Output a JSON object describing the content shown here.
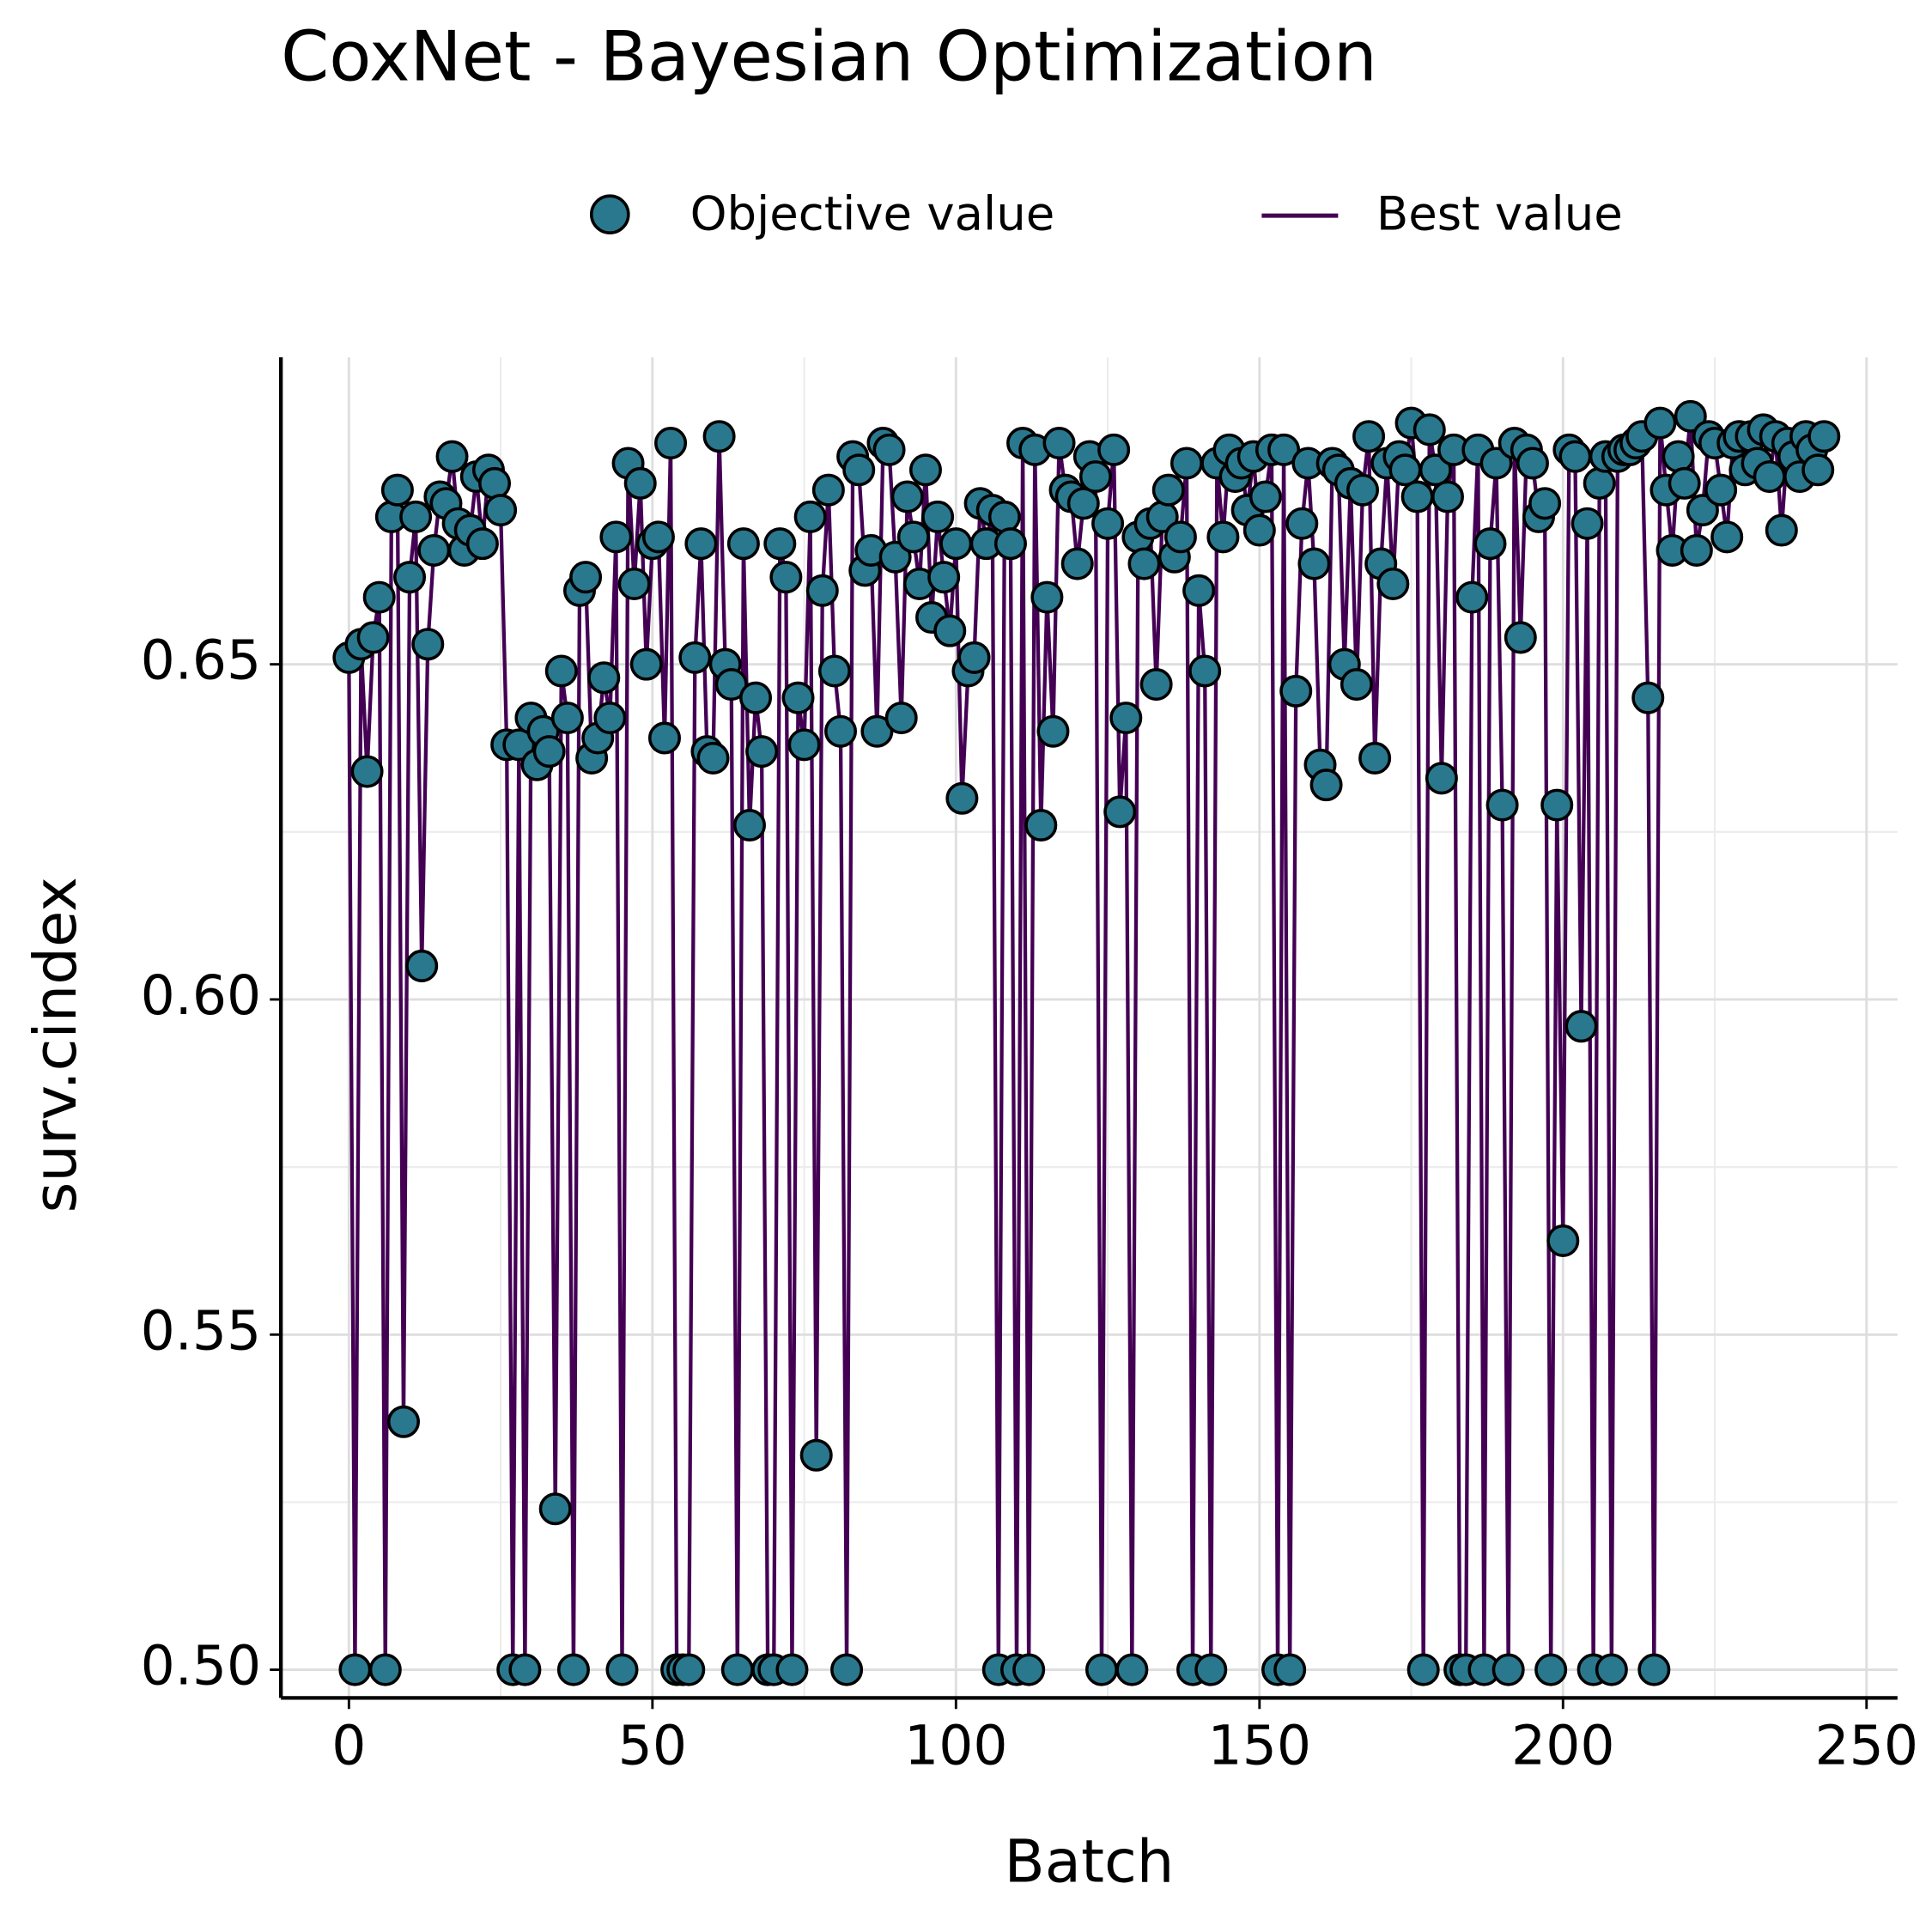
{
  "chart_data": {
    "type": "scatter-line",
    "title": "CoxNet - Bayesian Optimization",
    "x_label": "Batch",
    "y_label": "surv.cindex",
    "x": [
      0,
      1,
      2,
      3,
      4,
      5,
      6,
      7,
      8,
      9,
      10,
      11,
      12,
      13,
      14,
      15,
      16,
      17,
      18,
      19,
      20,
      21,
      22,
      23,
      24,
      25,
      26,
      27,
      28,
      29,
      30,
      31,
      32,
      33,
      34,
      35,
      36,
      37,
      38,
      39,
      40,
      41,
      42,
      43,
      44,
      45,
      46,
      47,
      48,
      49,
      50,
      51,
      52,
      53,
      54,
      55,
      56,
      57,
      58,
      59,
      60,
      61,
      62,
      63,
      64,
      65,
      66,
      67,
      68,
      69,
      70,
      71,
      72,
      73,
      74,
      75,
      76,
      77,
      78,
      79,
      80,
      81,
      82,
      83,
      84,
      85,
      86,
      87,
      88,
      89,
      90,
      91,
      92,
      93,
      94,
      95,
      96,
      97,
      98,
      99,
      100,
      101,
      102,
      103,
      104,
      105,
      106,
      107,
      108,
      109,
      110,
      111,
      112,
      113,
      114,
      115,
      116,
      117,
      118,
      119,
      120,
      121,
      122,
      123,
      124,
      125,
      126,
      127,
      128,
      129,
      130,
      131,
      132,
      133,
      134,
      135,
      136,
      137,
      138,
      139,
      140,
      141,
      142,
      143,
      144,
      145,
      146,
      147,
      148,
      149,
      150,
      151,
      152,
      153,
      154,
      155,
      156,
      157,
      158,
      159,
      160,
      161,
      162,
      163,
      164,
      165,
      166,
      167,
      168,
      169,
      170,
      171,
      172,
      173,
      174,
      175,
      176,
      177,
      178,
      179,
      180,
      181,
      182,
      183,
      184,
      185,
      186,
      187,
      188,
      189,
      190,
      191,
      192,
      193,
      194,
      195,
      196,
      197,
      198,
      199,
      200,
      201,
      202,
      203,
      204,
      205,
      206,
      207,
      208,
      209,
      210,
      211,
      212,
      213,
      214,
      215,
      216,
      217,
      218,
      219,
      220,
      221,
      222,
      223,
      224,
      225,
      226,
      227,
      228,
      229,
      230,
      231,
      232,
      233,
      234,
      235,
      236,
      237,
      238,
      239,
      240,
      241,
      242,
      243
    ],
    "series": [
      {
        "name": "Objective value",
        "color": "#2a788e",
        "values": [
          0.651,
          0.5,
          0.653,
          0.634,
          0.654,
          0.66,
          0.5,
          0.672,
          0.676,
          0.537,
          0.663,
          0.672,
          0.605,
          0.653,
          0.667,
          0.675,
          0.674,
          0.681,
          0.671,
          0.667,
          0.67,
          0.678,
          0.668,
          0.679,
          0.677,
          0.673,
          0.638,
          0.5,
          0.638,
          0.5,
          0.642,
          0.635,
          0.64,
          0.637,
          0.524,
          0.649,
          0.642,
          0.5,
          0.661,
          0.663,
          0.636,
          0.639,
          0.648,
          0.642,
          0.669,
          0.5,
          0.68,
          0.662,
          0.677,
          0.65,
          0.668,
          0.669,
          0.639,
          0.683,
          0.5,
          0.5,
          0.5,
          0.651,
          0.668,
          0.637,
          0.636,
          0.684,
          0.65,
          0.647,
          0.5,
          0.668,
          0.626,
          0.645,
          0.637,
          0.5,
          0.5,
          0.668,
          0.663,
          0.5,
          0.645,
          0.638,
          0.672,
          0.532,
          0.661,
          0.676,
          0.649,
          0.64,
          0.5,
          0.681,
          0.679,
          0.664,
          0.667,
          0.64,
          0.683,
          0.682,
          0.666,
          0.642,
          0.675,
          0.669,
          0.662,
          0.679,
          0.657,
          0.672,
          0.663,
          0.655,
          0.668,
          0.63,
          0.649,
          0.651,
          0.674,
          0.668,
          0.673,
          0.5,
          0.672,
          0.668,
          0.5,
          0.683,
          0.5,
          0.682,
          0.626,
          0.66,
          0.64,
          0.683,
          0.676,
          0.675,
          0.665,
          0.674,
          0.681,
          0.678,
          0.5,
          0.671,
          0.682,
          0.628,
          0.642,
          0.5,
          0.669,
          0.665,
          0.671,
          0.647,
          0.672,
          0.676,
          0.666,
          0.669,
          0.68,
          0.5,
          0.661,
          0.649,
          0.5,
          0.68,
          0.669,
          0.682,
          0.678,
          0.68,
          0.673,
          0.681,
          0.67,
          0.675,
          0.682,
          0.5,
          0.682,
          0.5,
          0.646,
          0.671,
          0.68,
          0.665,
          0.635,
          0.632,
          0.68,
          0.679,
          0.65,
          0.677,
          0.647,
          0.676,
          0.684,
          0.636,
          0.665,
          0.68,
          0.662,
          0.681,
          0.679,
          0.686,
          0.675,
          0.5,
          0.685,
          0.679,
          0.633,
          0.675,
          0.682,
          0.5,
          0.5,
          0.66,
          0.682,
          0.5,
          0.668,
          0.68,
          0.629,
          0.5,
          0.683,
          0.654,
          0.682,
          0.68,
          0.672,
          0.674,
          0.5,
          0.629,
          0.564,
          0.682,
          0.681,
          0.596,
          0.671,
          0.5,
          0.677,
          0.681,
          0.5,
          0.681,
          0.682,
          0.682,
          0.683,
          0.684,
          0.645,
          0.5,
          0.686,
          0.676,
          0.667,
          0.681,
          0.677,
          0.687,
          0.667,
          0.673,
          0.684,
          0.683,
          0.676,
          0.669,
          0.683,
          0.684,
          0.679,
          0.684,
          0.68,
          0.685,
          0.678,
          0.684,
          0.67,
          0.683,
          0.681,
          0.678,
          0.684,
          0.682,
          0.679,
          0.684
        ]
      },
      {
        "name": "Best value",
        "color": "#440154",
        "values": [
          0.651,
          0.5,
          0.653,
          0.634,
          0.654,
          0.66,
          0.5,
          0.672,
          0.676,
          0.537,
          0.663,
          0.672,
          0.605,
          0.653,
          0.667,
          0.675,
          0.674,
          0.681,
          0.671,
          0.667,
          0.67,
          0.678,
          0.668,
          0.679,
          0.677,
          0.673,
          0.638,
          0.5,
          0.638,
          0.5,
          0.642,
          0.635,
          0.64,
          0.637,
          0.524,
          0.649,
          0.642,
          0.5,
          0.661,
          0.663,
          0.636,
          0.639,
          0.648,
          0.642,
          0.669,
          0.5,
          0.68,
          0.662,
          0.677,
          0.65,
          0.668,
          0.669,
          0.639,
          0.683,
          0.5,
          0.5,
          0.5,
          0.651,
          0.668,
          0.637,
          0.636,
          0.684,
          0.65,
          0.647,
          0.5,
          0.668,
          0.626,
          0.645,
          0.637,
          0.5,
          0.5,
          0.668,
          0.663,
          0.5,
          0.645,
          0.638,
          0.672,
          0.532,
          0.661,
          0.676,
          0.649,
          0.64,
          0.5,
          0.681,
          0.679,
          0.664,
          0.667,
          0.64,
          0.683,
          0.682,
          0.666,
          0.642,
          0.675,
          0.669,
          0.662,
          0.679,
          0.657,
          0.672,
          0.663,
          0.655,
          0.668,
          0.63,
          0.649,
          0.651,
          0.674,
          0.668,
          0.673,
          0.5,
          0.672,
          0.668,
          0.5,
          0.683,
          0.5,
          0.682,
          0.626,
          0.66,
          0.64,
          0.683,
          0.676,
          0.675,
          0.665,
          0.674,
          0.681,
          0.678,
          0.5,
          0.671,
          0.682,
          0.628,
          0.642,
          0.5,
          0.669,
          0.665,
          0.671,
          0.647,
          0.672,
          0.676,
          0.666,
          0.669,
          0.68,
          0.5,
          0.661,
          0.649,
          0.5,
          0.68,
          0.669,
          0.682,
          0.678,
          0.68,
          0.673,
          0.681,
          0.67,
          0.675,
          0.682,
          0.5,
          0.682,
          0.5,
          0.646,
          0.671,
          0.68,
          0.665,
          0.635,
          0.632,
          0.68,
          0.679,
          0.65,
          0.677,
          0.647,
          0.676,
          0.684,
          0.636,
          0.665,
          0.68,
          0.662,
          0.681,
          0.679,
          0.686,
          0.675,
          0.5,
          0.685,
          0.679,
          0.633,
          0.675,
          0.682,
          0.5,
          0.5,
          0.66,
          0.682,
          0.5,
          0.668,
          0.68,
          0.629,
          0.5,
          0.683,
          0.654,
          0.682,
          0.68,
          0.672,
          0.674,
          0.5,
          0.629,
          0.564,
          0.682,
          0.681,
          0.596,
          0.671,
          0.5,
          0.677,
          0.681,
          0.5,
          0.681,
          0.682,
          0.682,
          0.683,
          0.684,
          0.645,
          0.5,
          0.686,
          0.676,
          0.667,
          0.681,
          0.677,
          0.687,
          0.667,
          0.673,
          0.684,
          0.683,
          0.676,
          0.669,
          0.683,
          0.684,
          0.679,
          0.684,
          0.68,
          0.685,
          0.678,
          0.684,
          0.67,
          0.683,
          0.681,
          0.678,
          0.684,
          0.682,
          0.679,
          0.684
        ]
      }
    ],
    "xlim": [
      -11.2,
      255.1
    ],
    "ylim": [
      0.4958,
      0.6958
    ],
    "xticks": [
      0,
      50,
      100,
      150,
      200,
      250
    ],
    "yticks": [
      {
        "value": 0.5,
        "label": "0.50"
      },
      0.55,
      {
        "value": 0.6,
        "label": "0.60"
      },
      0.65
    ],
    "grid": true,
    "legend": "top"
  }
}
